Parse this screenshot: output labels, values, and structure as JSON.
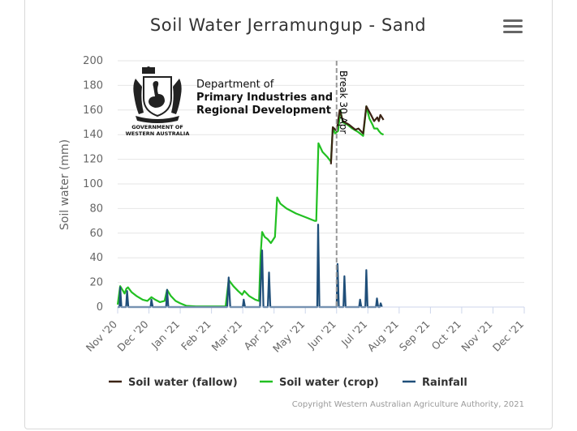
{
  "chart_data": {
    "type": "line",
    "title": "Soil Water Jerramungup - Sand",
    "ylabel": "Soil water (mm)",
    "xlabel": "",
    "ylim": [
      0,
      200
    ],
    "yticks": [
      0,
      20,
      40,
      60,
      80,
      100,
      120,
      140,
      160,
      180,
      200
    ],
    "x_domain": [
      0,
      13
    ],
    "x_tick_labels": [
      "Nov '20",
      "Dec '20",
      "Jan '21",
      "Feb '21",
      "Mar '21",
      "Apr '21",
      "May '21",
      "Jun '21",
      "Jul '21",
      "Aug '21",
      "Sep '21",
      "Oct '21",
      "Nov '21",
      "Dec '21"
    ],
    "plot_line": {
      "x": 7.0,
      "label": "Break 30 Apr"
    },
    "legend": [
      "Soil water (fallow)",
      "Soil water (crop)",
      "Rainfall"
    ],
    "series": [
      {
        "name": "Soil water (fallow)",
        "color": "#3b2314",
        "points": [
          [
            6.82,
            116
          ],
          [
            6.88,
            146
          ],
          [
            7.0,
            143
          ],
          [
            7.1,
            160
          ],
          [
            7.2,
            151
          ],
          [
            7.4,
            148
          ],
          [
            7.6,
            144
          ],
          [
            7.7,
            145
          ],
          [
            7.85,
            141
          ],
          [
            7.95,
            163
          ],
          [
            8.1,
            156
          ],
          [
            8.2,
            151
          ],
          [
            8.3,
            154
          ],
          [
            8.35,
            151
          ],
          [
            8.4,
            156
          ],
          [
            8.5,
            152
          ]
        ]
      },
      {
        "name": "Soil water (crop)",
        "color": "#22c022",
        "points": [
          [
            0,
            2
          ],
          [
            0.08,
            17
          ],
          [
            0.15,
            14
          ],
          [
            0.22,
            11
          ],
          [
            0.28,
            15
          ],
          [
            0.33,
            16
          ],
          [
            0.45,
            12
          ],
          [
            0.6,
            9
          ],
          [
            0.8,
            6
          ],
          [
            0.95,
            5
          ],
          [
            1.08,
            8
          ],
          [
            1.2,
            6
          ],
          [
            1.35,
            4
          ],
          [
            1.5,
            5
          ],
          [
            1.58,
            14
          ],
          [
            1.7,
            9
          ],
          [
            1.85,
            5
          ],
          [
            2.0,
            3
          ],
          [
            2.2,
            1
          ],
          [
            2.5,
            0.5
          ],
          [
            3.0,
            0.5
          ],
          [
            3.45,
            0.5
          ],
          [
            3.55,
            22
          ],
          [
            3.7,
            17
          ],
          [
            3.85,
            13
          ],
          [
            3.98,
            10
          ],
          [
            4.05,
            13
          ],
          [
            4.2,
            9
          ],
          [
            4.4,
            6
          ],
          [
            4.52,
            5
          ],
          [
            4.57,
            42
          ],
          [
            4.62,
            61
          ],
          [
            4.7,
            57
          ],
          [
            4.8,
            55
          ],
          [
            4.9,
            52
          ],
          [
            5.03,
            57
          ],
          [
            5.1,
            89
          ],
          [
            5.2,
            84
          ],
          [
            5.4,
            80
          ],
          [
            5.7,
            76
          ],
          [
            6.0,
            73
          ],
          [
            6.3,
            70
          ],
          [
            6.35,
            70
          ],
          [
            6.42,
            133
          ],
          [
            6.55,
            126
          ],
          [
            6.7,
            122
          ],
          [
            6.82,
            118
          ],
          [
            6.88,
            146
          ],
          [
            6.95,
            141
          ],
          [
            7.05,
            143
          ],
          [
            7.12,
            160
          ],
          [
            7.2,
            150
          ],
          [
            7.35,
            148
          ],
          [
            7.5,
            145
          ],
          [
            7.7,
            142
          ],
          [
            7.85,
            139
          ],
          [
            7.95,
            163
          ],
          [
            8.05,
            153
          ],
          [
            8.15,
            148
          ],
          [
            8.2,
            145
          ],
          [
            8.3,
            145
          ],
          [
            8.35,
            143
          ],
          [
            8.42,
            141
          ],
          [
            8.5,
            140
          ]
        ]
      },
      {
        "name": "Rainfall",
        "color": "#1f4e79",
        "points": [
          [
            0,
            0
          ],
          [
            0.06,
            0
          ],
          [
            0.08,
            16
          ],
          [
            0.12,
            0
          ],
          [
            0.27,
            0
          ],
          [
            0.3,
            13
          ],
          [
            0.34,
            0
          ],
          [
            1.05,
            0
          ],
          [
            1.08,
            6
          ],
          [
            1.12,
            0
          ],
          [
            1.55,
            0
          ],
          [
            1.58,
            14
          ],
          [
            1.62,
            0
          ],
          [
            3.5,
            0
          ],
          [
            3.55,
            24
          ],
          [
            3.6,
            0
          ],
          [
            4.0,
            0
          ],
          [
            4.03,
            6
          ],
          [
            4.07,
            0
          ],
          [
            4.55,
            0
          ],
          [
            4.58,
            22
          ],
          [
            4.62,
            46
          ],
          [
            4.66,
            0
          ],
          [
            4.8,
            0
          ],
          [
            4.84,
            28
          ],
          [
            4.88,
            0
          ],
          [
            6.38,
            0
          ],
          [
            6.41,
            67
          ],
          [
            6.45,
            0
          ],
          [
            7.0,
            0
          ],
          [
            7.03,
            35
          ],
          [
            7.07,
            0
          ],
          [
            7.22,
            0
          ],
          [
            7.25,
            25
          ],
          [
            7.29,
            0
          ],
          [
            7.72,
            0
          ],
          [
            7.75,
            6
          ],
          [
            7.79,
            0
          ],
          [
            7.92,
            0
          ],
          [
            7.95,
            30
          ],
          [
            7.99,
            0
          ],
          [
            8.26,
            0
          ],
          [
            8.29,
            7
          ],
          [
            8.33,
            0
          ],
          [
            8.38,
            0
          ],
          [
            8.41,
            3
          ],
          [
            8.45,
            0
          ]
        ]
      }
    ]
  },
  "logo": {
    "dept_line1": "Department of",
    "dept_line2": "Primary Industries and",
    "dept_line3": "Regional Development",
    "govt_line1": "GOVERNMENT OF",
    "govt_line2": "WESTERN AUSTRALIA"
  },
  "credits": "Copyright Western Australian Agriculture Authority, 2021",
  "menu_icon": "hamburger-menu-icon"
}
